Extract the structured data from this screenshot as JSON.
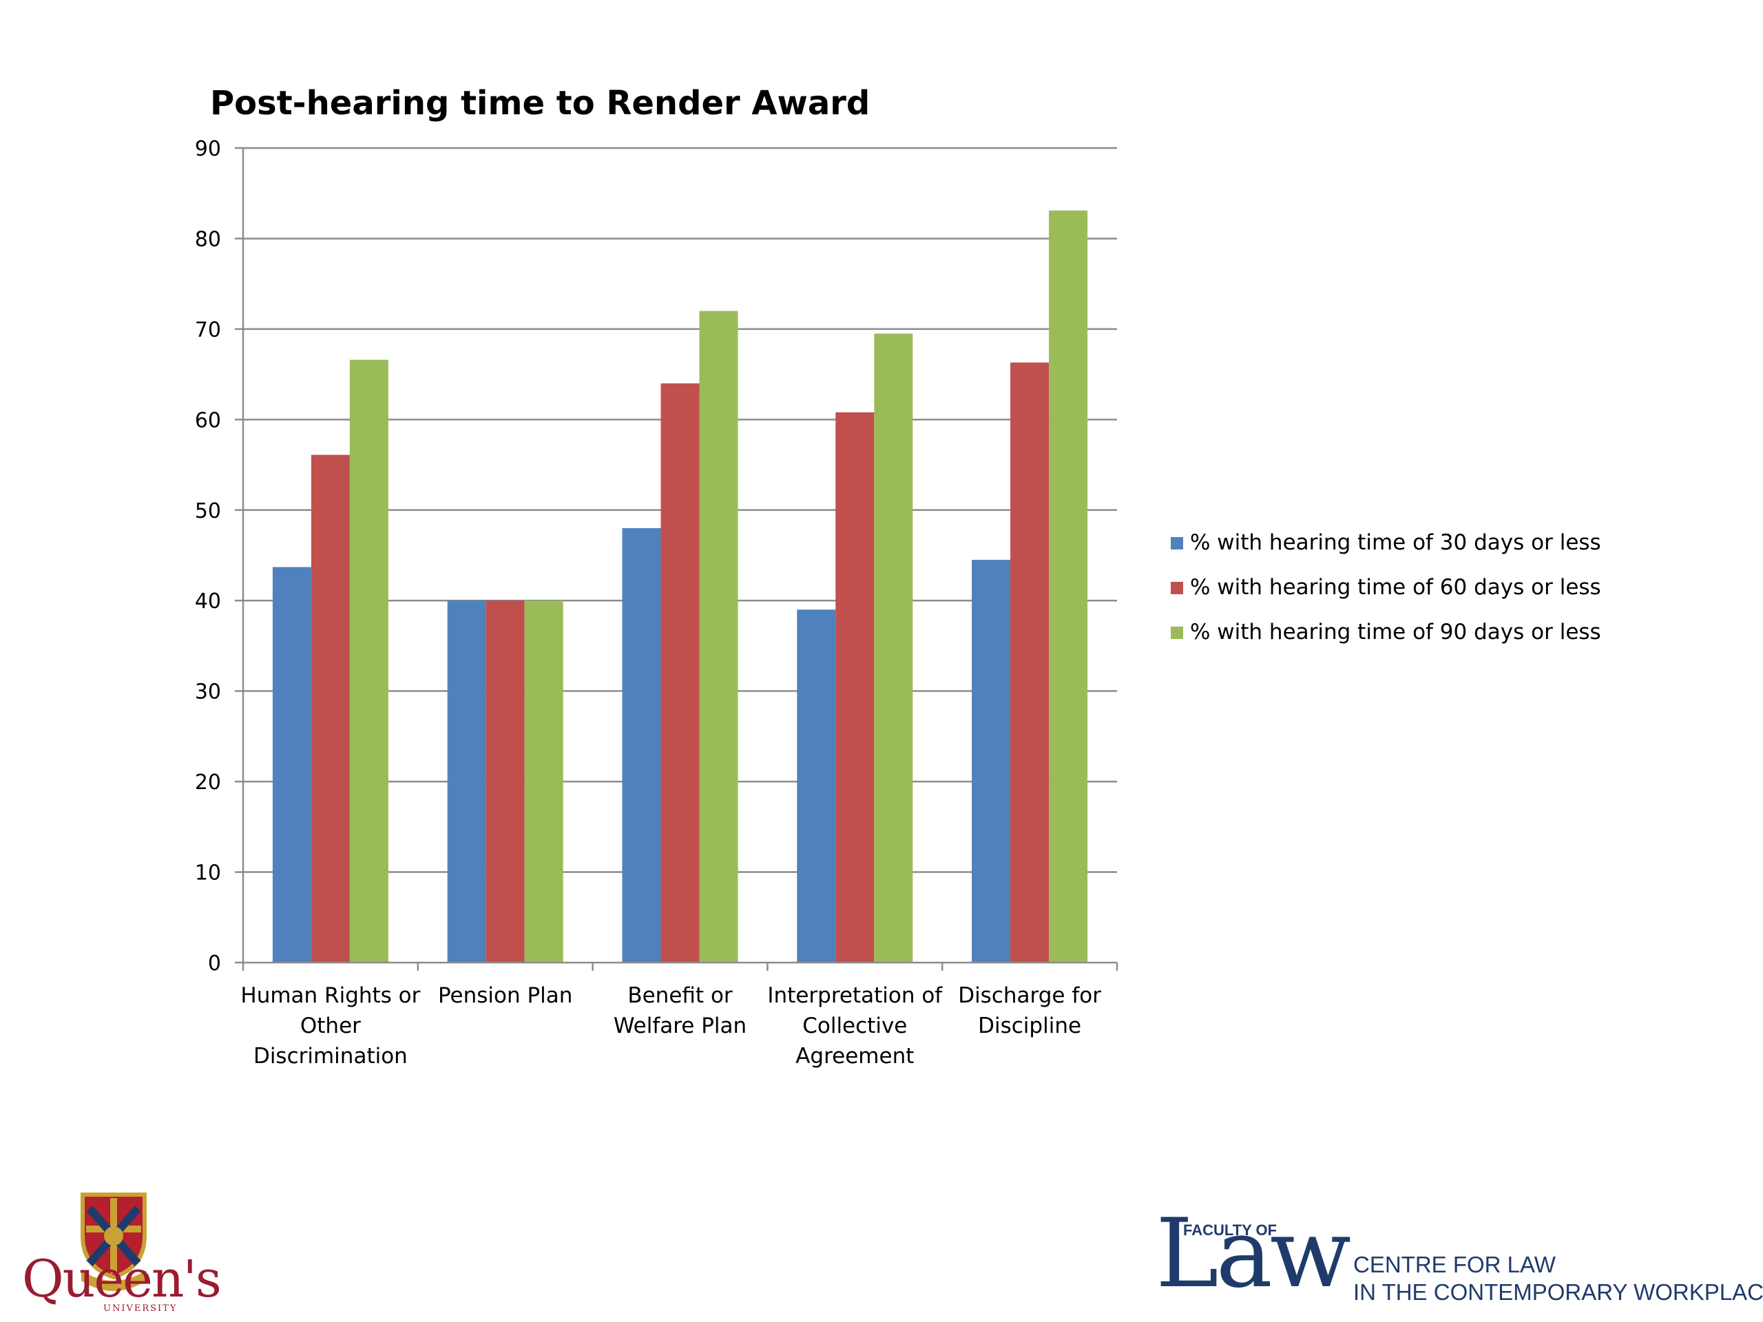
{
  "chart_data": {
    "type": "bar",
    "title": "Post-hearing time to Render Award",
    "categories": [
      [
        "Human Rights or",
        "Other",
        "Discrimination"
      ],
      [
        "Pension Plan"
      ],
      [
        "Benefit or",
        "Welfare Plan"
      ],
      [
        "Interpretation of",
        "Collective",
        "Agreement"
      ],
      [
        "Discharge for",
        "Discipline"
      ]
    ],
    "series": [
      {
        "name": "% with hearing time of 30 days or less",
        "color": "#4f81bd",
        "values": [
          43.7,
          40,
          48,
          39,
          44.5
        ]
      },
      {
        "name": "% with hearing time of 60 days or less",
        "color": "#c0504d",
        "values": [
          56.1,
          40,
          64,
          60.8,
          66.3
        ]
      },
      {
        "name": "% with hearing time of 90 days or less",
        "color": "#9bbb59",
        "values": [
          66.6,
          40,
          72,
          69.5,
          83.1
        ]
      }
    ],
    "ylim": [
      0,
      90
    ],
    "yticks": [
      0,
      10,
      20,
      30,
      40,
      50,
      60,
      70,
      80,
      90
    ],
    "grid": true,
    "legend": "right"
  },
  "logos": {
    "queens": {
      "name": "Queen's",
      "sub": "UNIVERSITY"
    },
    "law": {
      "faculty": "FACULTY OF",
      "word": "Law",
      "centre_line1": "CENTRE FOR LAW",
      "centre_line2": "IN THE CONTEMPORARY WORKPLACE"
    }
  }
}
